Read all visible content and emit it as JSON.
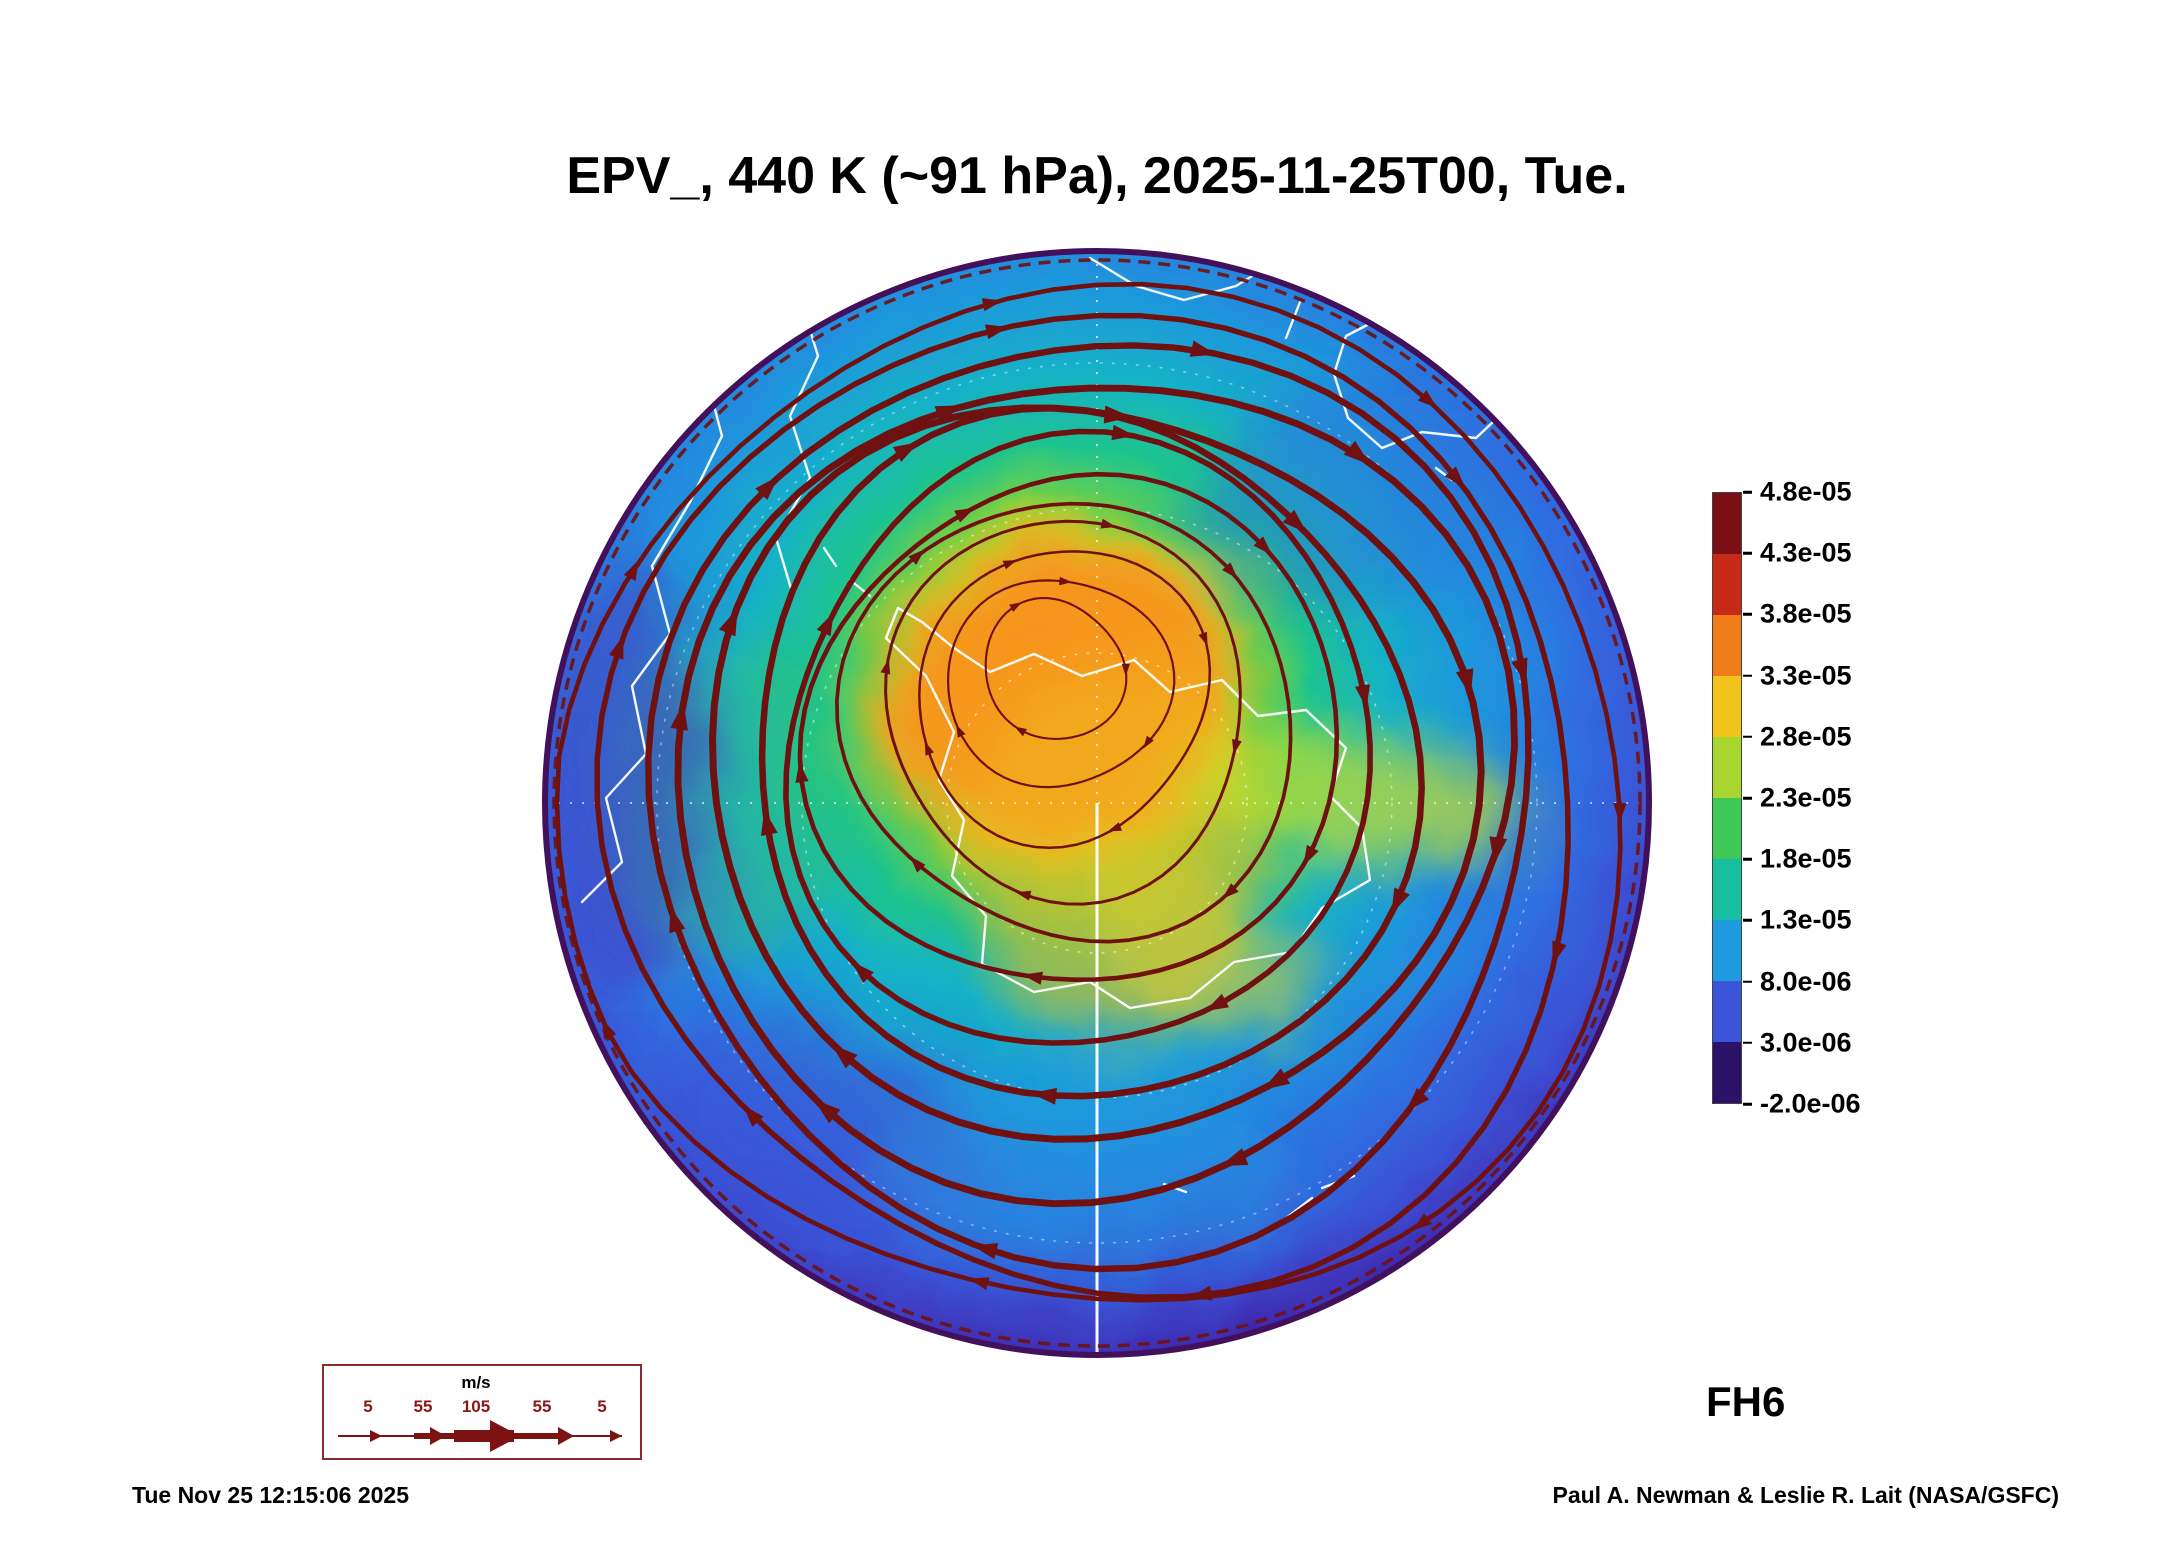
{
  "title": "EPV_, 440 K (~91 hPa), 2025-11-25T00, Tue.",
  "forecast_label": "FH6",
  "timestamp": "Tue Nov 25 12:15:06 2025",
  "credit": "Paul A. Newman & Leslie R. Lait (NASA/GSFC)",
  "colorbar": {
    "tick_labels": [
      "4.8e-05",
      "4.3e-05",
      "3.8e-05",
      "3.3e-05",
      "2.8e-05",
      "2.3e-05",
      "1.8e-05",
      "1.3e-05",
      "8.0e-06",
      "3.0e-06",
      "-2.0e-06"
    ],
    "band_colors_top_to_bottom": [
      "#7a1016",
      "#c62a17",
      "#f07c1a",
      "#f2c21d",
      "#a9d531",
      "#3fc857",
      "#16bfa0",
      "#1f9ade",
      "#3a55d9",
      "#2c1168"
    ]
  },
  "wind_legend": {
    "unit": "m/s",
    "tick_labels": [
      "5",
      "55",
      "105",
      "55",
      "5"
    ]
  },
  "map": {
    "colors": {
      "streamline": "#6f1111",
      "coastline": "#ffffff",
      "vortex_core": "#f6951d",
      "rim": "#43105c"
    }
  },
  "chart_data": {
    "type": "heatmap",
    "title": "EPV_, 440 K (~91 hPa), 2025-11-25T00, Tue.",
    "projection": "south-polar",
    "colorbar_ticks": [
      4.8e-05,
      4.3e-05,
      3.8e-05,
      3.3e-05,
      2.8e-05,
      2.3e-05,
      1.8e-05,
      1.3e-05,
      8e-06,
      3e-06,
      -2e-06
    ],
    "wind_speed_scale_ms": [
      5,
      55,
      105,
      55,
      5
    ],
    "forecast_hour": "FH6"
  }
}
